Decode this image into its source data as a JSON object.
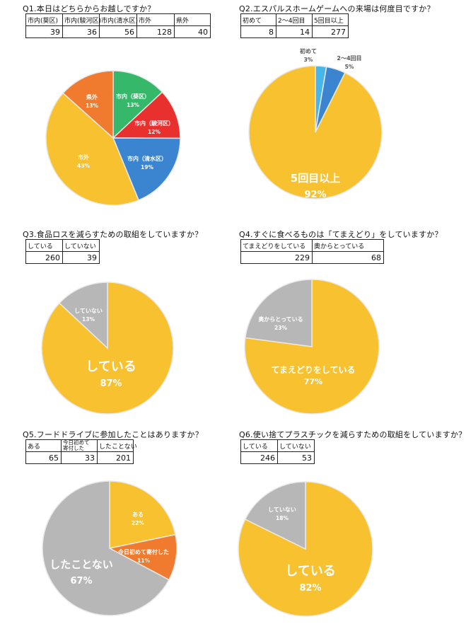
{
  "colors": {
    "yellow": "#F8C12F",
    "green": "#35B86A",
    "red": "#E8302F",
    "blue": "#3A84D0",
    "orange": "#F07B2E",
    "gray": "#B7B7B7",
    "lightblue": "#49B6E8",
    "border": "#E9E9E9"
  },
  "chart_data": [
    {
      "type": "pie",
      "title": "Q1.本日はどちらからお越しですか？",
      "categories": [
        "市内(葵区)",
        "市内(駿河区)",
        "市内(清水区)",
        "市外",
        "県外"
      ],
      "values": [
        39,
        36,
        56,
        128,
        40
      ],
      "slices": [
        {
          "label": "市内（葵区）",
          "pct": "13%",
          "value": 39,
          "color": "#35B86A"
        },
        {
          "label": "市内（駿河区）",
          "pct": "12%",
          "value": 36,
          "color": "#E8302F"
        },
        {
          "label": "市内（清水区）",
          "pct": "19%",
          "value": 56,
          "color": "#3A84D0"
        },
        {
          "label": "市外",
          "pct": "43%",
          "value": 128,
          "color": "#F8C12F"
        },
        {
          "label": "県外",
          "pct": "13%",
          "value": 40,
          "color": "#F07B2E"
        }
      ]
    },
    {
      "type": "pie",
      "title": "Q2.エスパルスホームゲームへの来場は何度目ですか？",
      "categories": [
        "初めて",
        "2～4回目",
        "5回目以上"
      ],
      "values": [
        8,
        14,
        277
      ],
      "slices": [
        {
          "label": "初めて",
          "pct": "3%",
          "value": 8,
          "color": "#49B6E8"
        },
        {
          "label": "2～4回目",
          "pct": "5%",
          "value": 14,
          "color": "#3A84D0"
        },
        {
          "label": "5回目以上",
          "pct": "92%",
          "value": 277,
          "color": "#F8C12F"
        }
      ]
    },
    {
      "type": "pie",
      "title": "Q3.食品ロスを減らすための取組をしていますか？",
      "categories": [
        "している",
        "していない"
      ],
      "values": [
        260,
        39
      ],
      "slices": [
        {
          "label": "している",
          "pct": "87%",
          "value": 260,
          "color": "#F8C12F"
        },
        {
          "label": "していない",
          "pct": "13%",
          "value": 39,
          "color": "#B7B7B7"
        }
      ]
    },
    {
      "type": "pie",
      "title": "Q4.すぐに食べるものは「てまえどり」をしていますか？",
      "categories": [
        "てまえどりをしている",
        "奥からとっている"
      ],
      "values": [
        229,
        68
      ],
      "slices": [
        {
          "label": "てまえどりをしている",
          "pct": "77%",
          "value": 229,
          "color": "#F8C12F"
        },
        {
          "label": "奥からとっている",
          "pct": "23%",
          "value": 68,
          "color": "#B7B7B7"
        }
      ]
    },
    {
      "type": "pie",
      "title": "Q5.フードドライブに参加したことはありますか？",
      "categories": [
        "ある",
        "今日初めて寄付した",
        "したことない"
      ],
      "values": [
        65,
        33,
        201
      ],
      "slices": [
        {
          "label": "ある",
          "pct": "22%",
          "value": 65,
          "color": "#F8C12F"
        },
        {
          "label": "今日初めて寄付した",
          "pct": "11%",
          "value": 33,
          "color": "#F07B2E"
        },
        {
          "label": "したことない",
          "pct": "67%",
          "value": 201,
          "color": "#B7B7B7"
        }
      ]
    },
    {
      "type": "pie",
      "title": "Q6.使い捨てプラスチックを減らすための取組をしていますか？",
      "categories": [
        "している",
        "していない"
      ],
      "values": [
        246,
        53
      ],
      "slices": [
        {
          "label": "している",
          "pct": "82%",
          "value": 246,
          "color": "#F8C12F"
        },
        {
          "label": "していない",
          "pct": "18%",
          "value": 53,
          "color": "#B7B7B7"
        }
      ]
    }
  ],
  "tables": {
    "q1": {
      "headers": [
        "市内(葵区)",
        "市内(駿河区)",
        "市内(清水区)",
        "市外",
        "県外"
      ],
      "values": [
        "39",
        "36",
        "56",
        "128",
        "40"
      ]
    },
    "q2": {
      "headers": [
        "初めて",
        "2～4回目",
        "5回目以上"
      ],
      "values": [
        "8",
        "14",
        "277"
      ]
    },
    "q3": {
      "headers": [
        "している",
        "していない"
      ],
      "values": [
        "260",
        "39"
      ]
    },
    "q4": {
      "headers": [
        "てまえどりをしている",
        "奥からとっている"
      ],
      "values": [
        "229",
        "68"
      ]
    },
    "q5": {
      "headers": [
        "ある",
        "今日初めて寄付した",
        "したことない"
      ],
      "values": [
        "65",
        "33",
        "201"
      ]
    },
    "q6": {
      "headers": [
        "している",
        "していない"
      ],
      "values": [
        "246",
        "53"
      ]
    }
  },
  "q5_header_lines": [
    "今日初めて",
    "寄付した"
  ]
}
